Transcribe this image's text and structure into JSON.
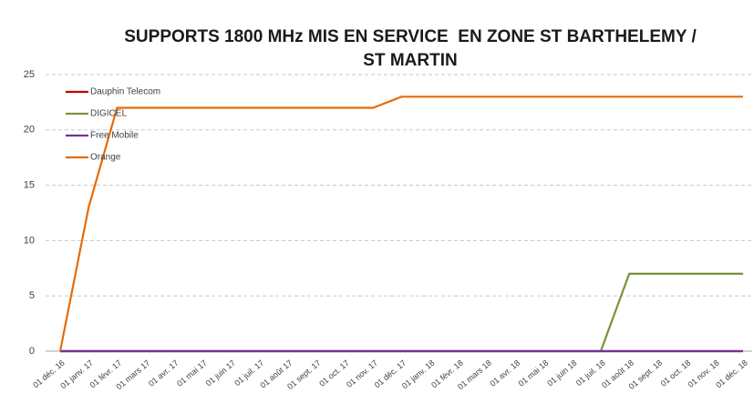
{
  "chart_data": {
    "type": "line",
    "title": "SUPPORTS 1800 MHz MIS EN SERVICE  EN ZONE ST BARTHELEMY / ST MARTIN",
    "categories": [
      "01 déc. 16",
      "01 janv. 17",
      "01 févr. 17",
      "01 mars 17",
      "01 avr. 17",
      "01 mai 17",
      "01 juin 17",
      "01 juil. 17",
      "01 août 17",
      "01 sept. 17",
      "01 oct. 17",
      "01 nov. 17",
      "01 déc. 17",
      "01 janv. 18",
      "01 févr. 18",
      "01 mars 18",
      "01 avr. 18",
      "01 mai 18",
      "01 juin 18",
      "01 juil. 18",
      "01 août 18",
      "01 sept. 18",
      "01 oct. 18",
      "01 nov. 18",
      "01 déc. 18"
    ],
    "series": [
      {
        "name": "Dauphin Telecom",
        "color": "#c00000",
        "values": [
          0,
          0,
          0,
          0,
          0,
          0,
          0,
          0,
          0,
          0,
          0,
          0,
          0,
          0,
          0,
          0,
          0,
          0,
          0,
          0,
          0,
          0,
          0,
          0,
          0
        ]
      },
      {
        "name": "DIGICEL",
        "color": "#77933c",
        "values": [
          0,
          0,
          0,
          0,
          0,
          0,
          0,
          0,
          0,
          0,
          0,
          0,
          0,
          0,
          0,
          0,
          0,
          0,
          0,
          0,
          7,
          7,
          7,
          7,
          7
        ]
      },
      {
        "name": "Free Mobile",
        "color": "#7030a0",
        "values": [
          0,
          0,
          0,
          0,
          0,
          0,
          0,
          0,
          0,
          0,
          0,
          0,
          0,
          0,
          0,
          0,
          0,
          0,
          0,
          0,
          0,
          0,
          0,
          0,
          0
        ]
      },
      {
        "name": "Orange",
        "color": "#e46c0a",
        "values": [
          0,
          13,
          22,
          22,
          22,
          22,
          22,
          22,
          22,
          22,
          22,
          22,
          23,
          23,
          23,
          23,
          23,
          23,
          23,
          23,
          23,
          23,
          23,
          23,
          23
        ]
      }
    ],
    "ylim": [
      0,
      25
    ],
    "yticks": [
      0,
      5,
      10,
      15,
      20,
      25
    ],
    "grid": true,
    "legend": "top-left"
  }
}
